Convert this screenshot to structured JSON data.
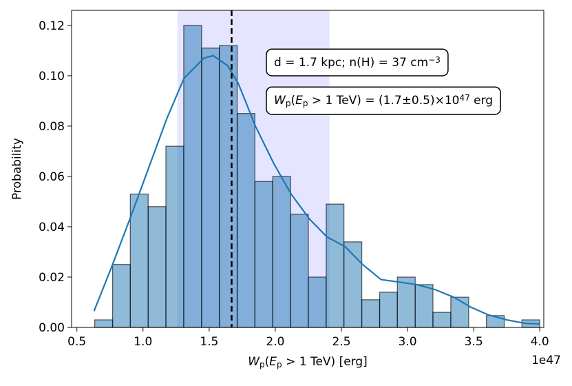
{
  "chart_data": {
    "type": "histogram",
    "ylabel": "Probability",
    "xlabel": [
      {
        "text": "W",
        "style": "italic"
      },
      {
        "text": "p",
        "style": "sub"
      },
      {
        "text": "(",
        "style": "normal"
      },
      {
        "text": "E",
        "style": "italic"
      },
      {
        "text": "p",
        "style": "sub"
      },
      {
        "text": " > 1 TeV) [erg]",
        "style": "normal"
      }
    ],
    "x_offset_label": "1e47",
    "bins": [
      0.635,
      0.77,
      0.904,
      1.039,
      1.173,
      1.308,
      1.443,
      1.577,
      1.712,
      1.846,
      1.981,
      2.116,
      2.25,
      2.385,
      2.519,
      2.654,
      2.789,
      2.923,
      3.058,
      3.192,
      3.327,
      3.462,
      3.596,
      3.731,
      3.865,
      4.0
    ],
    "values": [
      0.003,
      0.025,
      0.053,
      0.048,
      0.072,
      0.12,
      0.111,
      0.112,
      0.085,
      0.058,
      0.06,
      0.045,
      0.02,
      0.049,
      0.034,
      0.011,
      0.014,
      0.02,
      0.017,
      0.006,
      0.012,
      0,
      0.0047,
      0,
      0.003
    ],
    "color": "#1f77b4",
    "kde": {
      "color": "#1f77b4",
      "x": [
        0.63,
        0.77,
        0.9,
        1.04,
        1.18,
        1.31,
        1.46,
        1.53,
        1.64,
        1.72,
        1.85,
        1.99,
        2.12,
        2.26,
        2.39,
        2.53,
        2.66,
        2.8,
        2.94,
        3.07,
        3.21,
        3.35,
        3.48,
        3.61,
        3.75,
        3.89,
        4.0
      ],
      "values": [
        0.0065,
        0.025,
        0.043,
        0.063,
        0.083,
        0.099,
        0.107,
        0.108,
        0.104,
        0.097,
        0.08,
        0.065,
        0.053,
        0.043,
        0.036,
        0.032,
        0.025,
        0.019,
        0.018,
        0.017,
        0.015,
        0.012,
        0.008,
        0.005,
        0.003,
        0.0016,
        0.0014
      ]
    },
    "span": [
      1.26,
      2.41
    ],
    "span_color": "#0000ff",
    "vline": 1.67,
    "annotations": [
      [
        {
          "text": "d = 1.7 kpc; n(H) = 37 cm",
          "style": "normal"
        },
        {
          "text": "−3",
          "style": "sup"
        }
      ],
      [
        {
          "text": "W",
          "style": "italic"
        },
        {
          "text": "p",
          "style": "sub"
        },
        {
          "text": "(",
          "style": "normal"
        },
        {
          "text": "E",
          "style": "italic"
        },
        {
          "text": "p",
          "style": "sub"
        },
        {
          "text": " > 1 TeV) = (1.7±0.5)×10",
          "style": "normal"
        },
        {
          "text": "47",
          "style": "sup"
        },
        {
          "text": " erg",
          "style": "normal"
        }
      ]
    ],
    "xlim": [
      0.46,
      4.03
    ],
    "ylim": [
      0,
      0.126
    ],
    "xticks": [
      {
        "value": 0.5,
        "label": "0.5"
      },
      {
        "value": 1.0,
        "label": "1.0"
      },
      {
        "value": 1.5,
        "label": "1.5"
      },
      {
        "value": 2.0,
        "label": "2.0"
      },
      {
        "value": 2.5,
        "label": "2.5"
      },
      {
        "value": 3.0,
        "label": "3.0"
      },
      {
        "value": 3.5,
        "label": "3.5"
      },
      {
        "value": 4.0,
        "label": "4.0"
      }
    ],
    "yticks": [
      {
        "value": 0,
        "label": "0.00"
      },
      {
        "value": 0.02,
        "label": "0.02"
      },
      {
        "value": 0.04,
        "label": "0.04"
      },
      {
        "value": 0.06,
        "label": "0.06"
      },
      {
        "value": 0.08,
        "label": "0.08"
      },
      {
        "value": 0.1,
        "label": "0.10"
      },
      {
        "value": 0.12,
        "label": "0.12"
      }
    ]
  }
}
